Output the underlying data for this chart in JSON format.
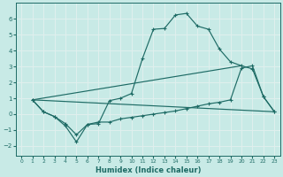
{
  "xlabel": "Humidex (Indice chaleur)",
  "xlim": [
    -0.5,
    23.5
  ],
  "ylim": [
    -2.6,
    7.0
  ],
  "yticks": [
    -2,
    -1,
    0,
    1,
    2,
    3,
    4,
    5,
    6
  ],
  "xticks": [
    0,
    1,
    2,
    3,
    4,
    5,
    6,
    7,
    8,
    9,
    10,
    11,
    12,
    13,
    14,
    15,
    16,
    17,
    18,
    19,
    20,
    21,
    22,
    23
  ],
  "bg_color": "#c8eae6",
  "line_color": "#1e6b65",
  "grid_color": "#e0f0ee",
  "series_upper": {
    "x": [
      1,
      2,
      3,
      4,
      5,
      6,
      7,
      8,
      9,
      10,
      11,
      12,
      13,
      14,
      15,
      16,
      17,
      18,
      19,
      20,
      21,
      22,
      23
    ],
    "y": [
      0.9,
      0.15,
      -0.15,
      -0.6,
      -1.3,
      -0.65,
      -0.6,
      0.85,
      1.0,
      1.3,
      3.5,
      5.35,
      5.4,
      6.25,
      6.35,
      5.55,
      5.35,
      4.1,
      3.3,
      3.05,
      2.85,
      1.1,
      0.15
    ]
  },
  "series_lower": {
    "x": [
      1,
      2,
      3,
      4,
      5,
      6,
      7,
      8,
      9,
      10,
      11,
      12,
      13,
      14,
      15,
      16,
      17,
      18,
      19,
      20,
      21,
      22,
      23
    ],
    "y": [
      0.9,
      0.15,
      -0.15,
      -0.75,
      -1.75,
      -0.65,
      -0.5,
      -0.5,
      -0.3,
      -0.2,
      -0.1,
      0.0,
      0.1,
      0.2,
      0.35,
      0.5,
      0.65,
      0.75,
      0.9,
      2.9,
      3.05,
      1.1,
      0.15
    ]
  },
  "line_flat": {
    "x": [
      1,
      23
    ],
    "y": [
      0.9,
      0.15
    ]
  },
  "line_rising": {
    "x": [
      1,
      20
    ],
    "y": [
      0.9,
      3.05
    ]
  }
}
